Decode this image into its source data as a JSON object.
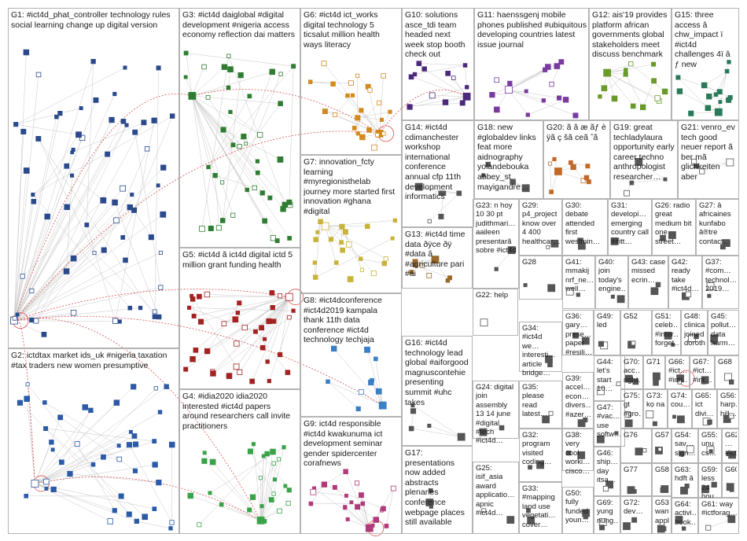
{
  "groups": [
    {
      "id": "G1",
      "text": "G1: #ict4d_phat_controller technology rules social learning change up digital version",
      "color": "#2b4a8c"
    },
    {
      "id": "G2",
      "text": "G2: ictdtax market ids_uk #nigeria taxation #tax traders new women presumptive",
      "color": "#2b5aa8"
    },
    {
      "id": "G3",
      "text": "G3: #ict4d daiglobal #digital development #nigeria access economy reflection dai matters",
      "color": "#2e7d32"
    },
    {
      "id": "G4",
      "text": "G4: #idia2020 idia2020 interested #ict4d papers around researchers call invite practitioners",
      "color": "#3aa34a"
    },
    {
      "id": "G5",
      "text": "G5: #ict4d ã ict4d digital ictd 5 million grant funding health",
      "color": "#a32222"
    },
    {
      "id": "G6",
      "text": "G6: #ict4d ict_works digital technology 5 ticsalut million health ways literacy",
      "color": "#d38a1e"
    },
    {
      "id": "G7",
      "text": "G7: innovation_fcty learning #myregionisthelab journey more started first innovation #ghana #digital",
      "color": "#c9b23a"
    },
    {
      "id": "G8",
      "text": "G8: #ict4dconference #ict4d2019 kampala thank 11th data conference #ict4d technology techjaja",
      "color": "#3b7fc4"
    },
    {
      "id": "G9",
      "text": "G9: ict4d responsible #ict4d kwakunuma ict development seminar gender spidercenter corafnews",
      "color": "#b03a7a"
    },
    {
      "id": "G10",
      "text": "G10: solutions asce_tdi team headed next week stop booth check out",
      "color": "#4b2a7a"
    },
    {
      "id": "G11",
      "text": "G11: haenssgenj mobile phones published #ubiquitous developing countries latest issue journal",
      "color": "#7a3aa0"
    },
    {
      "id": "G12",
      "text": "G12: ais'19 provides platform african governments global stakeholders meet discuss benchmark",
      "color": "#6a9a2a"
    },
    {
      "id": "G13",
      "text": "G13: #ict4d time data ðÿce ðÿ #data â #agriculture pari #ai",
      "color": "#9a6a2a"
    },
    {
      "id": "G14",
      "text": "G14: #ict4d cdimanchester workshop international conference annual cfp 11th development informatics",
      "color": "#555555"
    },
    {
      "id": "G15",
      "text": "G15: three access â chw_impact ï #ict4d challenges 4ï â ƒ new",
      "color": "#2a7a5a"
    },
    {
      "id": "G16",
      "text": "G16: #ict4d technology lead global #aiforgood magnuscontehie presenting summit #uhc takes",
      "color": "#555555"
    },
    {
      "id": "G17",
      "text": "G17: presentations now added abstracts plenaries conference webpage places still available",
      "color": "#555555"
    },
    {
      "id": "G18",
      "text": "G18: new #globaldev links feat more aidnography yolandebouka abbey_st mayigandre…",
      "color": "#555555"
    },
    {
      "id": "G19",
      "text": "G19: great techladylaura opportunity early career techno anthropologist researcher…",
      "color": "#555555"
    },
    {
      "id": "G20",
      "text": "G20: ã â æ ãƒ è ÿã ç šã ceã ˆã",
      "color": "#c06a2a"
    },
    {
      "id": "G21",
      "text": "G21: venro_ev tech good neuer report ã ber mã glichkeiten aber",
      "color": "#555555"
    },
    {
      "id": "G22",
      "text": "G22: help",
      "color": "#555555"
    },
    {
      "id": "G23",
      "text": "G23: n hoy 10 30 pt judithmari… aaileen presentarã sobre #ict4d",
      "color": "#555555"
    },
    {
      "id": "G24",
      "text": "G24: digital join assembly 13 14 june #digital #tech #ict4d…",
      "color": "#555555"
    },
    {
      "id": "G25",
      "text": "G25: isif_asia award applicatio… apnic #ict4d…",
      "color": "#555555"
    },
    {
      "id": "G26",
      "text": "G26: radio great medium bit one street…",
      "color": "#555555"
    },
    {
      "id": "G27",
      "text": "G27: â africaines kunfabo â®tre contact…",
      "color": "#555555"
    },
    {
      "id": "G28",
      "text": "G28",
      "color": "#555555"
    },
    {
      "id": "G29",
      "text": "G29: p4_project know over 4 400 healthcar…",
      "color": "#555555"
    },
    {
      "id": "G30",
      "text": "G30: debate attended first westmin…",
      "color": "#555555"
    },
    {
      "id": "G31",
      "text": "G31: developi… emerging country call #ifitt…",
      "color": "#555555"
    },
    {
      "id": "G32",
      "text": "G32: program visited coding…",
      "color": "#555555"
    },
    {
      "id": "G33",
      "text": "G33: #mapping land use vegetati… cover…",
      "color": "#555555"
    },
    {
      "id": "G34",
      "text": "G34: #ict4d we… interesti… article bridge…",
      "color": "#555555"
    },
    {
      "id": "G35",
      "text": "G35: please read latest…",
      "color": "#555555"
    },
    {
      "id": "G36",
      "text": "G36: gary… prese… paper #resili…",
      "color": "#555555"
    },
    {
      "id": "G37",
      "text": "G37: #com… technol… 2019…",
      "color": "#555555"
    },
    {
      "id": "G38",
      "text": "G38: very cool worki… cisco…",
      "color": "#555555"
    },
    {
      "id": "G39",
      "text": "G39: accel… econ… divers… #azer…",
      "color": "#555555"
    },
    {
      "id": "G40",
      "text": "G40: join today's engine…",
      "color": "#555555"
    },
    {
      "id": "G41",
      "text": "G41: mmakij nrf_ne… well…",
      "color": "#555555"
    },
    {
      "id": "G42",
      "text": "G42: ready take #ict4d…",
      "color": "#555555"
    },
    {
      "id": "G43",
      "text": "G43: case missed ecrin…",
      "color": "#555555"
    },
    {
      "id": "G44",
      "text": "G44: let's start 10…",
      "color": "#555555"
    },
    {
      "id": "G45",
      "text": "G45: pollut… data harm…",
      "color": "#555555"
    },
    {
      "id": "G46",
      "text": "G46: ship… day itsa…",
      "color": "#555555"
    },
    {
      "id": "G47",
      "text": "G47: #vac… use softw…",
      "color": "#555555"
    },
    {
      "id": "G48",
      "text": "G48: clinical joined doroth…",
      "color": "#555555"
    },
    {
      "id": "G49",
      "text": "G49: led",
      "color": "#555555"
    },
    {
      "id": "G50",
      "text": "G50: fully funded youn…",
      "color": "#555555"
    },
    {
      "id": "G51",
      "text": "G51: celeb… #inter… forget…",
      "color": "#555555"
    },
    {
      "id": "G52",
      "text": "G52",
      "color": "#555555"
    },
    {
      "id": "G53",
      "text": "G53: want appl…",
      "color": "#555555"
    },
    {
      "id": "G54",
      "text": "G54: sav… sign…",
      "color": "#555555"
    },
    {
      "id": "G55",
      "text": "G55: unu cs…",
      "color": "#555555"
    },
    {
      "id": "G56",
      "text": "G56: harp… hill…",
      "color": "#555555"
    },
    {
      "id": "G57",
      "text": "G57",
      "color": "#555555"
    },
    {
      "id": "G58",
      "text": "G58",
      "color": "#555555"
    },
    {
      "id": "G59",
      "text": "G59: less 24 hou…",
      "color": "#555555"
    },
    {
      "id": "G60",
      "text": "G60",
      "color": "#555555"
    },
    {
      "id": "G61",
      "text": "G61: way #ictforag…",
      "color": "#555555"
    },
    {
      "id": "G62",
      "text": "G62: … #ict…",
      "color": "#555555"
    },
    {
      "id": "G63",
      "text": "G63: hdft â",
      "color": "#555555"
    },
    {
      "id": "G64",
      "text": "G64: activi… book…",
      "color": "#555555"
    },
    {
      "id": "G65",
      "text": "G65: ict divi…",
      "color": "#555555"
    },
    {
      "id": "G66",
      "text": "G66: #ict… #inn…",
      "color": "#555555"
    },
    {
      "id": "G67",
      "text": "G67: #ict… #int…",
      "color": "#555555"
    },
    {
      "id": "G68",
      "text": "G68",
      "color": "#555555"
    },
    {
      "id": "G69",
      "text": "G69: yung nung…",
      "color": "#555555"
    },
    {
      "id": "G70",
      "text": "G70: acc… right…",
      "color": "#555555"
    },
    {
      "id": "G71",
      "text": "G71",
      "color": "#555555"
    },
    {
      "id": "G72",
      "text": "G72: dev…",
      "color": "#555555"
    },
    {
      "id": "G73",
      "text": "G73: kọ na",
      "color": "#555555"
    },
    {
      "id": "G74",
      "text": "G74: cou…",
      "color": "#555555"
    },
    {
      "id": "G75",
      "text": "G75: gt #gro…",
      "color": "#555555"
    },
    {
      "id": "G76",
      "text": "G76",
      "color": "#555555"
    },
    {
      "id": "G77",
      "text": "G77",
      "color": "#555555"
    }
  ]
}
